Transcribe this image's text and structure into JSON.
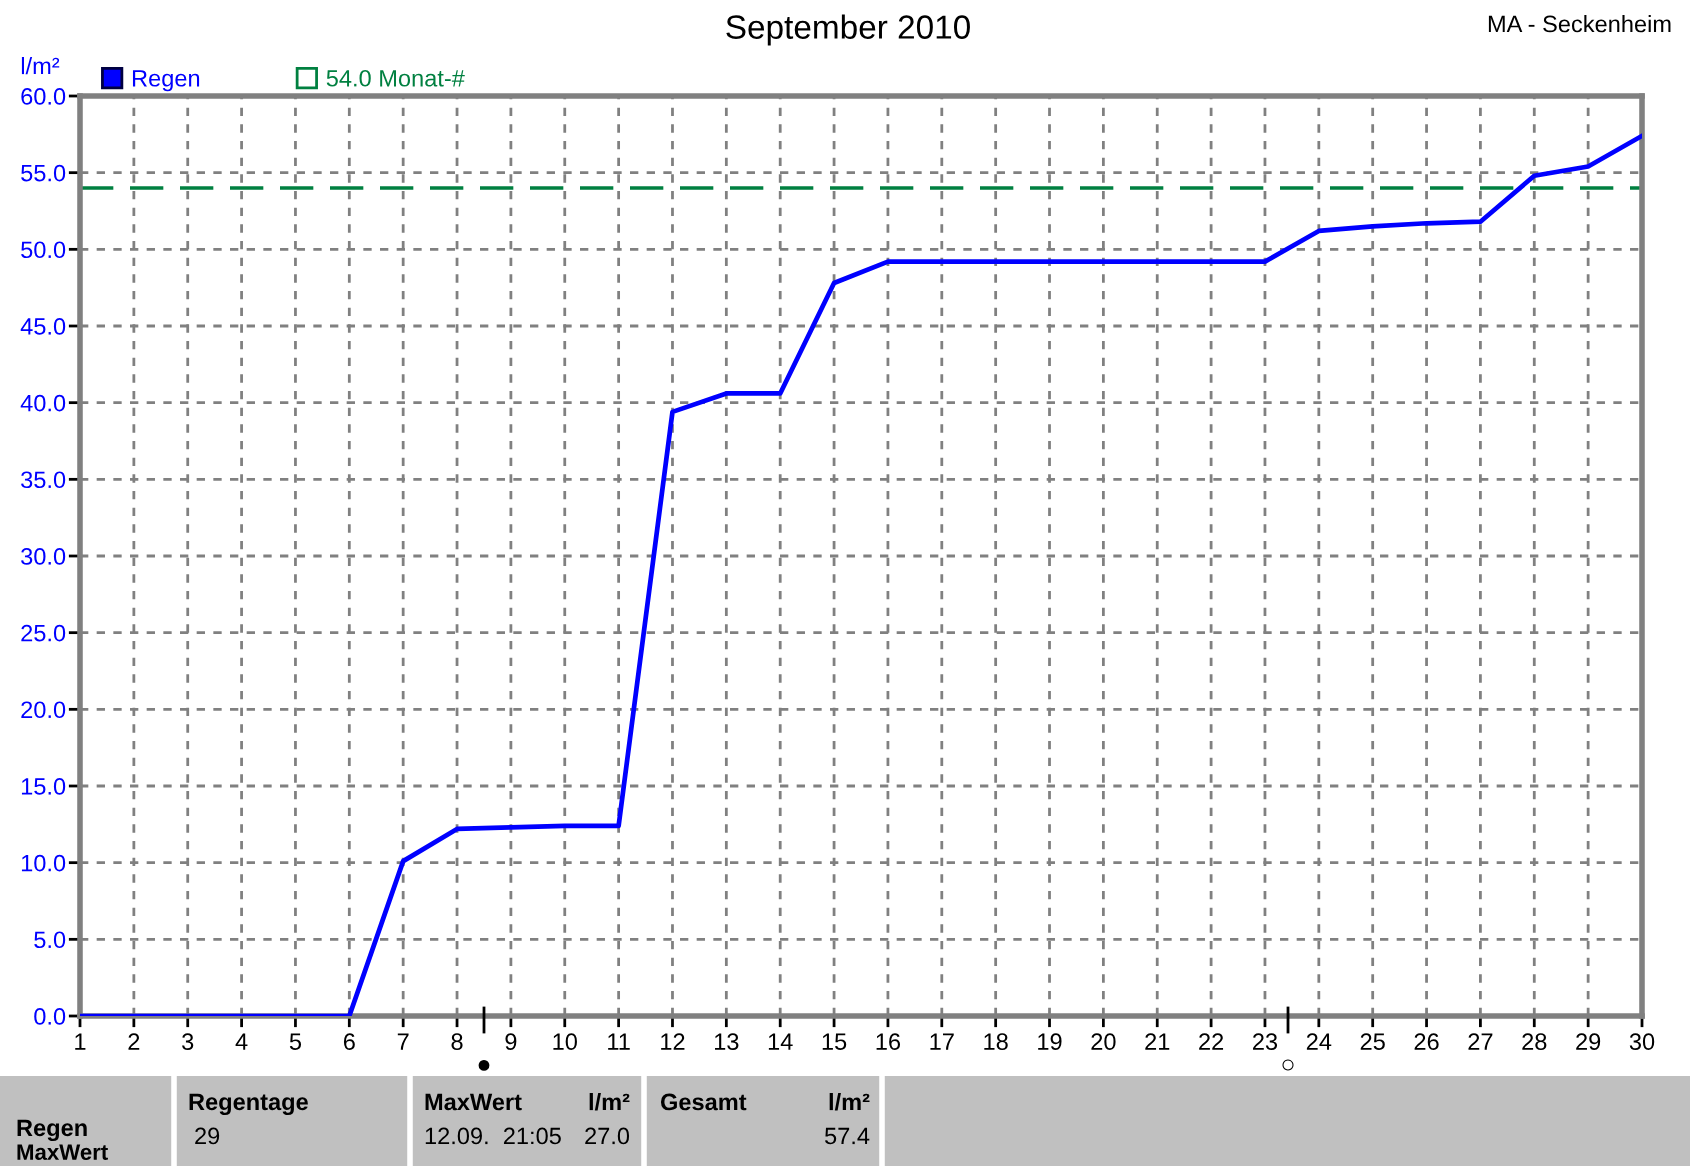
{
  "chart_data": {
    "type": "line",
    "title": "September 2010",
    "ylabel": "l/m²",
    "x": [
      1,
      2,
      3,
      4,
      5,
      6,
      7,
      8,
      9,
      10,
      11,
      12,
      13,
      14,
      15,
      16,
      17,
      18,
      19,
      20,
      21,
      22,
      23,
      24,
      25,
      26,
      27,
      28,
      29,
      30
    ],
    "series": [
      {
        "name": "Regen",
        "color": "#0000ff",
        "values": [
          0,
          0,
          0,
          0,
          0,
          0,
          10.1,
          12.2,
          12.3,
          12.4,
          12.4,
          39.4,
          40.6,
          40.6,
          47.8,
          49.2,
          49.2,
          49.2,
          49.2,
          49.2,
          49.2,
          49.2,
          49.2,
          51.2,
          51.5,
          51.7,
          51.8,
          54.8,
          55.4,
          57.4
        ]
      }
    ],
    "xlim": [
      1,
      30
    ],
    "xticks": [
      1,
      2,
      3,
      4,
      5,
      6,
      7,
      8,
      9,
      10,
      11,
      12,
      13,
      14,
      15,
      16,
      17,
      18,
      19,
      20,
      21,
      22,
      23,
      24,
      25,
      26,
      27,
      28,
      29,
      30
    ],
    "ylim": [
      0,
      60
    ],
    "yticks": [
      {
        "value": 0,
        "label": "0.0"
      },
      {
        "value": 5,
        "label": "5.0"
      },
      {
        "value": 10,
        "label": "10.0"
      },
      {
        "value": 15,
        "label": "15.0"
      },
      {
        "value": 20,
        "label": "20.0"
      },
      {
        "value": 25,
        "label": "25.0"
      },
      {
        "value": 30,
        "label": "30.0"
      },
      {
        "value": 35,
        "label": "35.0"
      },
      {
        "value": 40,
        "label": "40.0"
      },
      {
        "value": 45,
        "label": "45.0"
      },
      {
        "value": 50,
        "label": "50.0"
      },
      {
        "value": 55,
        "label": "55.0"
      },
      {
        "value": 60,
        "label": "60.0"
      }
    ],
    "ref_lines": [
      {
        "axis": "y",
        "value": 54.0,
        "label": "54.0 Monat-#",
        "color": "#008040",
        "line_style": "dashed"
      }
    ],
    "grid": true,
    "legend": "top left",
    "marker": "none",
    "line_style": "solid",
    "annotations": [
      "MA - Seckenheim",
      "●",
      "○",
      "Regentage",
      "29",
      "MaxWert",
      "l/m²",
      "12.09.  21:05",
      "27.0",
      "Gesamt",
      "l/m²",
      "57.4",
      "Regen",
      "MaxWert"
    ]
  }
}
